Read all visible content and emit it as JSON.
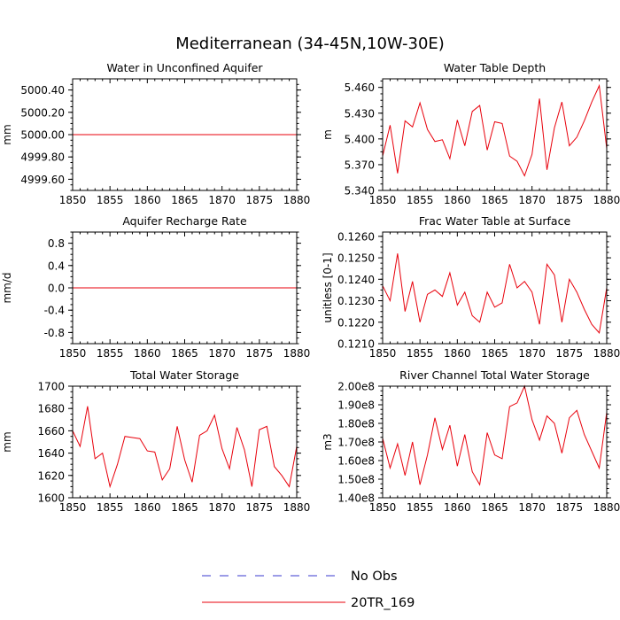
{
  "figure": {
    "title": "Mediterranean (34-45N,10W-30E)",
    "line_color": "#e8000b",
    "obs_color": "#3a3acf"
  },
  "legend": {
    "entries": [
      {
        "label": "No Obs",
        "style": "dashed",
        "color": "#3a3acf"
      },
      {
        "label": "20TR_169",
        "style": "solid",
        "color": "#e8000b"
      }
    ]
  },
  "chart_data": [
    {
      "type": "line",
      "title": "Water in Unconfined Aquifer",
      "xlabel": "",
      "ylabel": "mm",
      "xlim": [
        1850,
        1880
      ],
      "ylim": [
        4999.5,
        5000.5
      ],
      "xticks": [
        1850,
        1855,
        1860,
        1865,
        1870,
        1875,
        1880
      ],
      "yticks": [
        4999.6,
        4999.8,
        5000.0,
        5000.2,
        5000.4
      ],
      "yticklabels": [
        "4999.60",
        "4999.80",
        "5000.00",
        "5000.20",
        "5000.40"
      ],
      "series": [
        {
          "name": "20TR_169",
          "x": [
            1850,
            1880
          ],
          "values": [
            5000.0,
            5000.0
          ]
        }
      ]
    },
    {
      "type": "line",
      "title": "Water Table Depth",
      "xlabel": "",
      "ylabel": "m",
      "xlim": [
        1850,
        1880
      ],
      "ylim": [
        5.34,
        5.47
      ],
      "xticks": [
        1850,
        1855,
        1860,
        1865,
        1870,
        1875,
        1880
      ],
      "yticks": [
        5.34,
        5.37,
        5.4,
        5.43,
        5.46
      ],
      "yticklabels": [
        "5.340",
        "5.370",
        "5.400",
        "5.430",
        "5.460"
      ],
      "series": [
        {
          "name": "20TR_169",
          "x": [
            1850,
            1851,
            1852,
            1853,
            1854,
            1855,
            1856,
            1857,
            1858,
            1859,
            1860,
            1861,
            1862,
            1863,
            1864,
            1865,
            1866,
            1867,
            1868,
            1869,
            1870,
            1871,
            1872,
            1873,
            1874,
            1875,
            1876,
            1877,
            1878,
            1879,
            1880
          ],
          "values": [
            5.38,
            5.416,
            5.36,
            5.421,
            5.414,
            5.442,
            5.411,
            5.397,
            5.399,
            5.377,
            5.422,
            5.392,
            5.432,
            5.439,
            5.387,
            5.42,
            5.418,
            5.38,
            5.374,
            5.357,
            5.382,
            5.447,
            5.364,
            5.413,
            5.443,
            5.392,
            5.402,
            5.421,
            5.443,
            5.462,
            5.389
          ]
        }
      ]
    },
    {
      "type": "line",
      "title": "Aquifer Recharge Rate",
      "xlabel": "",
      "ylabel": "mm/d",
      "xlim": [
        1850,
        1880
      ],
      "ylim": [
        -1.0,
        1.0
      ],
      "xticks": [
        1850,
        1855,
        1860,
        1865,
        1870,
        1875,
        1880
      ],
      "yticks": [
        -0.8,
        -0.4,
        0.0,
        0.4,
        0.8
      ],
      "yticklabels": [
        "-0.8",
        "-0.4",
        "0.0",
        "0.4",
        "0.8"
      ],
      "series": [
        {
          "name": "20TR_169",
          "x": [
            1850,
            1880
          ],
          "values": [
            0.0,
            0.0
          ]
        }
      ]
    },
    {
      "type": "line",
      "title": "Frac Water Table at Surface",
      "xlabel": "",
      "ylabel": "unitless [0-1]",
      "xlim": [
        1850,
        1880
      ],
      "ylim": [
        0.121,
        0.1262
      ],
      "xticks": [
        1850,
        1855,
        1860,
        1865,
        1870,
        1875,
        1880
      ],
      "yticks": [
        0.121,
        0.122,
        0.123,
        0.124,
        0.125,
        0.126
      ],
      "yticklabels": [
        "0.1210",
        "0.1220",
        "0.1230",
        "0.1240",
        "0.1250",
        "0.1260"
      ],
      "series": [
        {
          "name": "20TR_169",
          "x": [
            1850,
            1851,
            1852,
            1853,
            1854,
            1855,
            1856,
            1857,
            1858,
            1859,
            1860,
            1861,
            1862,
            1863,
            1864,
            1865,
            1866,
            1867,
            1868,
            1869,
            1870,
            1871,
            1872,
            1873,
            1874,
            1875,
            1876,
            1877,
            1878,
            1879,
            1880
          ],
          "values": [
            0.1237,
            0.123,
            0.1252,
            0.1225,
            0.1239,
            0.122,
            0.1233,
            0.1235,
            0.1232,
            0.1243,
            0.1228,
            0.1234,
            0.1223,
            0.122,
            0.1234,
            0.1227,
            0.1229,
            0.1247,
            0.1236,
            0.1239,
            0.1234,
            0.1219,
            0.1247,
            0.1242,
            0.122,
            0.124,
            0.1234,
            0.1226,
            0.1219,
            0.1215,
            0.1236
          ]
        }
      ]
    },
    {
      "type": "line",
      "title": "Total Water Storage",
      "xlabel": "",
      "ylabel": "mm",
      "xlim": [
        1850,
        1880
      ],
      "ylim": [
        1600,
        1700
      ],
      "xticks": [
        1850,
        1855,
        1860,
        1865,
        1870,
        1875,
        1880
      ],
      "yticks": [
        1600,
        1620,
        1640,
        1660,
        1680,
        1700
      ],
      "yticklabels": [
        "1600",
        "1620",
        "1640",
        "1660",
        "1680",
        "1700"
      ],
      "series": [
        {
          "name": "20TR_169",
          "x": [
            1850,
            1851,
            1852,
            1853,
            1854,
            1855,
            1856,
            1857,
            1858,
            1859,
            1860,
            1861,
            1862,
            1863,
            1864,
            1865,
            1866,
            1867,
            1868,
            1869,
            1870,
            1871,
            1872,
            1873,
            1874,
            1875,
            1876,
            1877,
            1878,
            1879,
            1880
          ],
          "values": [
            1660,
            1646,
            1682,
            1635,
            1640,
            1610,
            1630,
            1655,
            1654,
            1653,
            1642,
            1641,
            1616,
            1626,
            1664,
            1634,
            1614,
            1656,
            1660,
            1674,
            1644,
            1626,
            1663,
            1643,
            1610,
            1661,
            1664,
            1628,
            1620,
            1610,
            1646
          ]
        }
      ]
    },
    {
      "type": "line",
      "title": "River Channel Total Water Storage",
      "xlabel": "",
      "ylabel": "m3",
      "xlim": [
        1850,
        1880
      ],
      "ylim": [
        140000000.0,
        200000000.0
      ],
      "xticks": [
        1850,
        1855,
        1860,
        1865,
        1870,
        1875,
        1880
      ],
      "yticks": [
        140000000.0,
        150000000.0,
        160000000.0,
        170000000.0,
        180000000.0,
        190000000.0,
        200000000.0
      ],
      "yticklabels": [
        "1.40e8",
        "1.50e8",
        "1.60e8",
        "1.70e8",
        "1.80e8",
        "1.90e8",
        "2.00e8"
      ],
      "series": [
        {
          "name": "20TR_169",
          "x": [
            1850,
            1851,
            1852,
            1853,
            1854,
            1855,
            1856,
            1857,
            1858,
            1859,
            1860,
            1861,
            1862,
            1863,
            1864,
            1865,
            1866,
            1867,
            1868,
            1869,
            1870,
            1871,
            1872,
            1873,
            1874,
            1875,
            1876,
            1877,
            1878,
            1879,
            1880
          ],
          "values": [
            172000000.0,
            156000000.0,
            169000000.0,
            152000000.0,
            170000000.0,
            147000000.0,
            163000000.0,
            183000000.0,
            166000000.0,
            179000000.0,
            157000000.0,
            174000000.0,
            154000000.0,
            147000000.0,
            175000000.0,
            163000000.0,
            161000000.0,
            189000000.0,
            191000000.0,
            200000000.0,
            182000000.0,
            171000000.0,
            184000000.0,
            180000000.0,
            164000000.0,
            183000000.0,
            187000000.0,
            174000000.0,
            165000000.0,
            156000000.0,
            186000000.0
          ]
        }
      ]
    }
  ]
}
